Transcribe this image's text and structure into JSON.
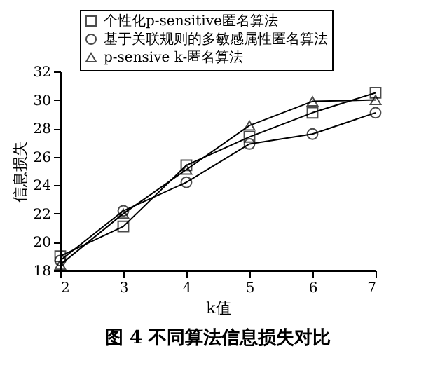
{
  "chart_data": {
    "type": "line",
    "title": "图 4   不同算法信息损失对比",
    "xlabel": "k值",
    "ylabel": "信息损失",
    "x": [
      2,
      3,
      4,
      5,
      6,
      7
    ],
    "series": [
      {
        "name": "个性化p-sensitive匿名算法",
        "color": "#000000",
        "marker": "square",
        "values": [
          19.0,
          21.1,
          25.4,
          27.4,
          29.1,
          30.5
        ]
      },
      {
        "name": "基于关联规则的多敏感属性匿名算法",
        "color": "#000000",
        "marker": "circle",
        "values": [
          18.7,
          22.2,
          24.2,
          26.9,
          27.6,
          29.1
        ]
      },
      {
        "name": "p-sensive k-匿名算法",
        "color": "#000000",
        "marker": "triangle",
        "values": [
          18.4,
          22.0,
          25.1,
          28.2,
          29.9,
          30.0
        ]
      }
    ],
    "xlim": [
      2,
      7
    ],
    "xticks": [
      2,
      3,
      4,
      5,
      6,
      7
    ],
    "ylim": [
      18,
      32
    ],
    "yticks": [
      18,
      20,
      22,
      24,
      26,
      28,
      30,
      32
    ],
    "grid": false,
    "legend": "top",
    "line_style": "solid"
  }
}
